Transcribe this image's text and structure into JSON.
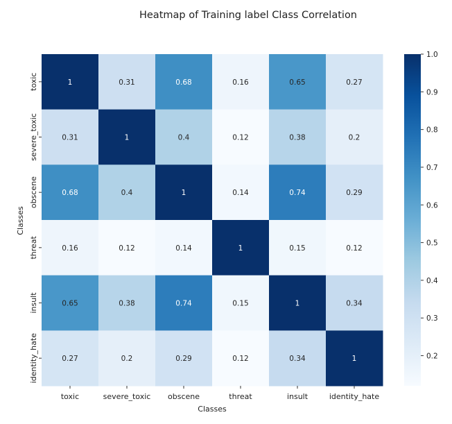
{
  "chart_data": {
    "type": "heatmap",
    "title": "Heatmap of Training label Class Correlation",
    "xlabel": "Classes",
    "ylabel": "Classes",
    "x_categories": [
      "toxic",
      "severe_toxic",
      "obscene",
      "threat",
      "insult",
      "identity_hate"
    ],
    "y_categories": [
      "toxic",
      "severe_toxic",
      "obscene",
      "threat",
      "insult",
      "identity_hate"
    ],
    "values": [
      [
        1,
        0.31,
        0.68,
        0.16,
        0.65,
        0.27
      ],
      [
        0.31,
        1,
        0.4,
        0.12,
        0.38,
        0.2
      ],
      [
        0.68,
        0.4,
        1,
        0.14,
        0.74,
        0.29
      ],
      [
        0.16,
        0.12,
        0.14,
        1,
        0.15,
        0.12
      ],
      [
        0.65,
        0.38,
        0.74,
        0.15,
        1,
        0.34
      ],
      [
        0.27,
        0.2,
        0.29,
        0.12,
        0.34,
        1
      ]
    ],
    "colorbar": {
      "range": [
        0.12,
        1.0
      ],
      "ticks": [
        "0.2",
        "0.3",
        "0.4",
        "0.5",
        "0.6",
        "0.7",
        "0.8",
        "0.9",
        "1.0"
      ],
      "colormap": "Blues"
    },
    "colors": {
      "low": "#f7fbff",
      "high": "#08306b"
    },
    "annotations": true
  }
}
